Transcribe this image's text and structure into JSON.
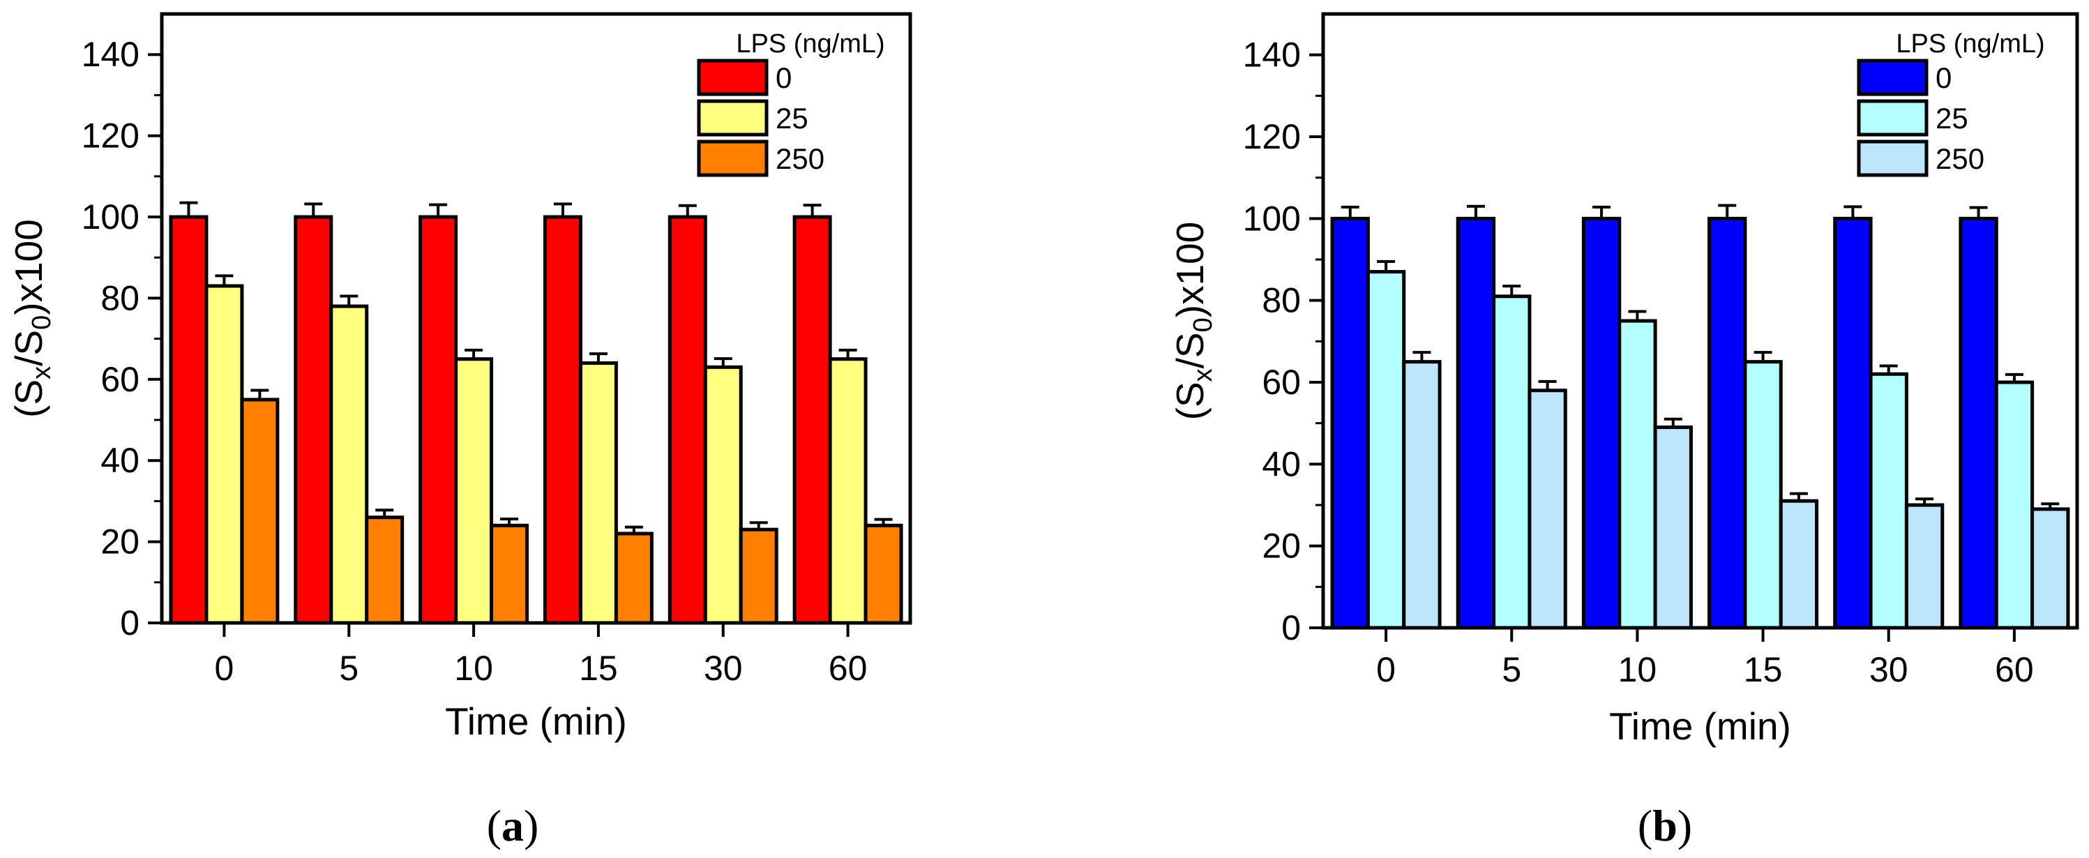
{
  "chart_data": [
    {
      "type": "bar",
      "panel": "a",
      "categories": [
        "0",
        "5",
        "10",
        "15",
        "30",
        "60"
      ],
      "xlabel": "Time (min)",
      "ylabel": {
        "lead": "(S",
        "sub1": "x",
        "mid": "/S",
        "sub2": "0",
        "tail": ")x100"
      },
      "ylim": [
        0,
        150
      ],
      "yticks": [
        0,
        20,
        40,
        60,
        80,
        100,
        120,
        140
      ],
      "legend_title": "LPS (ng/mL)",
      "legend_position": "top-right",
      "series": [
        {
          "name": "0",
          "color": "#ff0000",
          "values": [
            100,
            100,
            100,
            100,
            100,
            100
          ],
          "errors": [
            3.5,
            3.2,
            3.0,
            3.2,
            2.8,
            2.9
          ]
        },
        {
          "name": "25",
          "color": "#ffff80",
          "values": [
            83,
            78,
            65,
            64,
            63,
            65
          ],
          "errors": [
            2.5,
            2.5,
            2.2,
            2.3,
            2.1,
            2.2
          ]
        },
        {
          "name": "250",
          "color": "#ff8000",
          "values": [
            55,
            26,
            24,
            22,
            23,
            24
          ],
          "errors": [
            2.3,
            1.8,
            1.6,
            1.6,
            1.7,
            1.5
          ]
        }
      ]
    },
    {
      "type": "bar",
      "panel": "b",
      "categories": [
        "0",
        "5",
        "10",
        "15",
        "30",
        "60"
      ],
      "xlabel": "Time (min)",
      "ylabel": {
        "lead": "(S",
        "sub1": "x",
        "mid": "/S",
        "sub2": "0",
        "tail": ")x100"
      },
      "ylim": [
        0,
        150
      ],
      "yticks": [
        0,
        20,
        40,
        60,
        80,
        100,
        120,
        140
      ],
      "legend_title": "LPS (ng/mL)",
      "legend_position": "top-right",
      "series": [
        {
          "name": "0",
          "color": "#0000ff",
          "values": [
            100,
            100,
            100,
            100,
            100,
            100
          ],
          "errors": [
            2.8,
            3.0,
            2.8,
            3.2,
            2.9,
            2.7
          ]
        },
        {
          "name": "25",
          "color": "#b3ffff",
          "values": [
            87,
            81,
            75,
            65,
            62,
            60
          ],
          "errors": [
            2.5,
            2.5,
            2.3,
            2.3,
            2.0,
            1.9
          ]
        },
        {
          "name": "250",
          "color": "#bde5fb",
          "values": [
            65,
            58,
            49,
            31,
            30,
            29
          ],
          "errors": [
            2.3,
            2.2,
            2.0,
            1.8,
            1.5,
            1.3
          ]
        }
      ]
    }
  ],
  "panel_labels": [
    {
      "open": "(",
      "letter": "a",
      "close": ")"
    },
    {
      "open": "(",
      "letter": "b",
      "close": ")"
    }
  ]
}
